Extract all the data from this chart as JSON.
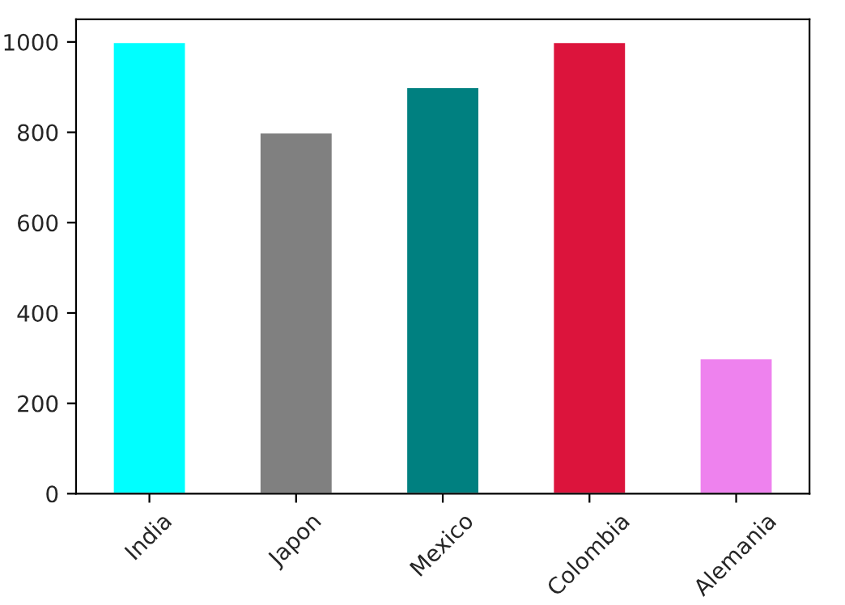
{
  "chart_data": {
    "type": "bar",
    "categories": [
      "India",
      "Japon",
      "Mexico",
      "Colombia",
      "Alemania"
    ],
    "values": [
      1000,
      800,
      900,
      1000,
      300
    ],
    "colors": [
      "#00ffff",
      "#808080",
      "#008080",
      "#dc143c",
      "#ee82ee"
    ],
    "ylim": [
      0,
      1050
    ],
    "yticks": [
      0,
      200,
      400,
      600,
      800,
      1000
    ],
    "grid": false,
    "legend": false
  }
}
